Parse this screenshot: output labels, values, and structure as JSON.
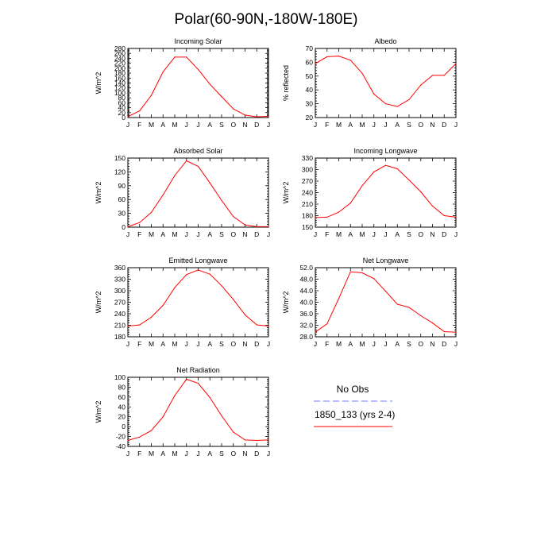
{
  "figure_title": "Polar(60-90N,-180W-180E)",
  "colors": {
    "model": "#ff0000",
    "obs": "#7777ff",
    "axes": "#000000"
  },
  "legend": {
    "obs_label": "No Obs",
    "model_label": "1850_133 (yrs 2-4)"
  },
  "chart_data": [
    {
      "type": "line",
      "title": "Incoming Solar",
      "xlabel": "",
      "ylabel": "W/m^2",
      "categories": [
        "J",
        "F",
        "M",
        "A",
        "M",
        "J",
        "J",
        "A",
        "S",
        "O",
        "N",
        "D",
        "J"
      ],
      "ylim": [
        0,
        280
      ],
      "yticks": [
        0,
        20,
        40,
        60,
        80,
        100,
        120,
        140,
        160,
        180,
        200,
        220,
        240,
        260,
        280
      ],
      "ytick_labels": [
        "0",
        "20",
        "40",
        "60",
        "80",
        "100",
        "120",
        "140",
        "160",
        "180",
        "200",
        "220",
        "240",
        "260",
        "280"
      ],
      "series": [
        {
          "name": "1850_133 (yrs 2-4)",
          "values": [
            4,
            27,
            90,
            185,
            245,
            245,
            195,
            135,
            85,
            35,
            10,
            3,
            5
          ]
        }
      ]
    },
    {
      "type": "line",
      "title": "Albedo",
      "xlabel": "",
      "ylabel": "% reflected",
      "categories": [
        "J",
        "F",
        "M",
        "A",
        "M",
        "J",
        "J",
        "A",
        "S",
        "O",
        "N",
        "D",
        "J"
      ],
      "ylim": [
        20,
        70
      ],
      "yticks": [
        20,
        30,
        40,
        50,
        60,
        70
      ],
      "ytick_labels": [
        "20",
        "30",
        "40",
        "50",
        "60",
        "70"
      ],
      "series": [
        {
          "name": "1850_133 (yrs 2-4)",
          "values": [
            59,
            64,
            64.5,
            61.5,
            52,
            37,
            30,
            28,
            33,
            43.5,
            50.5,
            50.5,
            59
          ]
        }
      ]
    },
    {
      "type": "line",
      "title": "Absorbed Solar",
      "xlabel": "",
      "ylabel": "W/m^2",
      "categories": [
        "J",
        "F",
        "M",
        "A",
        "M",
        "J",
        "J",
        "A",
        "S",
        "O",
        "N",
        "D",
        "J"
      ],
      "ylim": [
        0,
        150
      ],
      "yticks": [
        0,
        30,
        60,
        90,
        120,
        150
      ],
      "ytick_labels": [
        "0",
        "30",
        "60",
        "90",
        "120",
        "150"
      ],
      "series": [
        {
          "name": "1850_133 (yrs 2-4)",
          "values": [
            1,
            10,
            32,
            70,
            112,
            144,
            132,
            96,
            58,
            23,
            5,
            1,
            1
          ]
        }
      ]
    },
    {
      "type": "line",
      "title": "Incoming Longwave",
      "xlabel": "",
      "ylabel": "W/m^2",
      "categories": [
        "J",
        "F",
        "M",
        "A",
        "M",
        "J",
        "J",
        "A",
        "S",
        "O",
        "N",
        "D",
        "J"
      ],
      "ylim": [
        150,
        330
      ],
      "yticks": [
        150,
        180,
        210,
        240,
        270,
        300,
        330
      ],
      "ytick_labels": [
        "150",
        "180",
        "210",
        "240",
        "270",
        "300",
        "330"
      ],
      "series": [
        {
          "name": "1850_133 (yrs 2-4)",
          "values": [
            175,
            176,
            189,
            213,
            258,
            294,
            311,
            302,
            273,
            242,
            205,
            180,
            176
          ]
        }
      ]
    },
    {
      "type": "line",
      "title": "Emitted Longwave",
      "xlabel": "",
      "ylabel": "W/m^2",
      "categories": [
        "J",
        "F",
        "M",
        "A",
        "M",
        "J",
        "J",
        "A",
        "S",
        "O",
        "N",
        "D",
        "J"
      ],
      "ylim": [
        180,
        360
      ],
      "yticks": [
        180,
        210,
        240,
        270,
        300,
        330,
        360
      ],
      "ytick_labels": [
        "180",
        "210",
        "240",
        "270",
        "300",
        "330",
        "360"
      ],
      "series": [
        {
          "name": "1850_133 (yrs 2-4)",
          "values": [
            208,
            211,
            231,
            262,
            308,
            342,
            354,
            343,
            313,
            277,
            237,
            211,
            208
          ]
        }
      ]
    },
    {
      "type": "line",
      "title": "Net Longwave",
      "xlabel": "",
      "ylabel": "W/m^2",
      "categories": [
        "J",
        "F",
        "M",
        "A",
        "M",
        "J",
        "J",
        "A",
        "S",
        "O",
        "N",
        "D",
        "J"
      ],
      "ylim": [
        28,
        52
      ],
      "yticks": [
        28,
        32,
        36,
        40,
        44,
        48,
        52
      ],
      "ytick_labels": [
        "28.0",
        "32.0",
        "36.0",
        "40.0",
        "44.0",
        "48.0",
        "52.0"
      ],
      "series": [
        {
          "name": "1850_133 (yrs 2-4)",
          "values": [
            29.6,
            32.5,
            41.3,
            50.6,
            50.2,
            48.2,
            43.8,
            39.3,
            38.2,
            35.3,
            32.8,
            29.8,
            29.6
          ]
        }
      ]
    },
    {
      "type": "line",
      "title": "Net Radiation",
      "xlabel": "",
      "ylabel": "W/m^2",
      "categories": [
        "J",
        "F",
        "M",
        "A",
        "M",
        "J",
        "J",
        "A",
        "S",
        "O",
        "N",
        "D",
        "J"
      ],
      "ylim": [
        -40,
        100
      ],
      "yticks": [
        -40,
        -20,
        0,
        20,
        40,
        60,
        80,
        100
      ],
      "ytick_labels": [
        "-40",
        "-20",
        "0",
        "20",
        "40",
        "60",
        "80",
        "100"
      ],
      "series": [
        {
          "name": "1850_133 (yrs 2-4)",
          "values": [
            -28,
            -21,
            -8,
            20,
            63,
            96,
            88,
            59,
            22,
            -11,
            -27,
            -28,
            -27
          ]
        }
      ]
    }
  ]
}
